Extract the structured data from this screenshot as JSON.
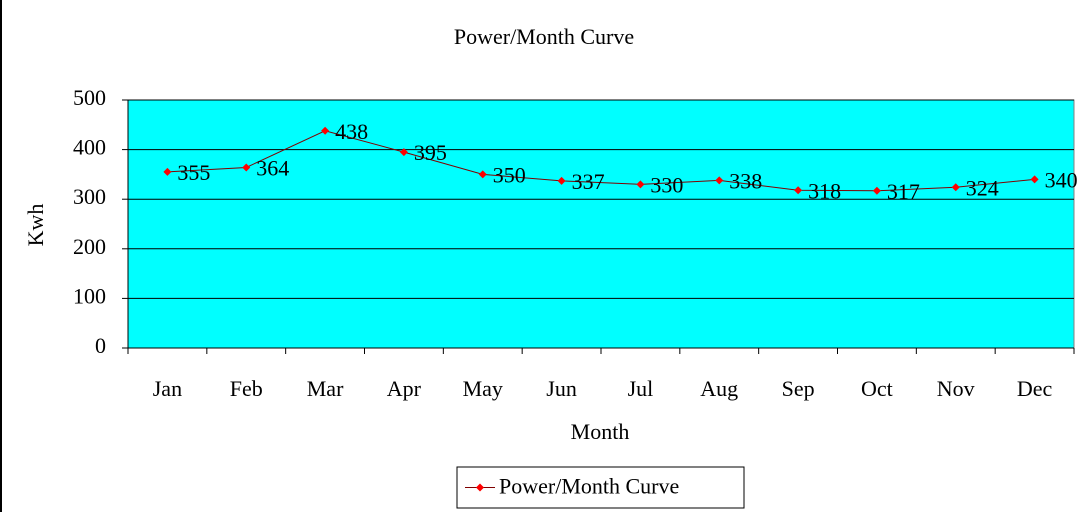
{
  "chart_data": {
    "type": "line",
    "title": "Power/Month Curve",
    "x_label": "Month",
    "y_label": "Kwh",
    "categories": [
      "Jan",
      "Feb",
      "Mar",
      "Apr",
      "May",
      "Jun",
      "Jul",
      "Aug",
      "Sep",
      "Oct",
      "Nov",
      "Dec"
    ],
    "series": [
      {
        "name": "Power/Month Curve",
        "color": "#ff0000",
        "line_color": "#800000",
        "values": [
          355,
          364,
          438,
          395,
          350,
          337,
          330,
          338,
          318,
          317,
          324,
          340
        ]
      }
    ],
    "ylim": [
      0,
      500
    ],
    "yticks": [
      0,
      100,
      200,
      300,
      400,
      500
    ],
    "grid": true,
    "legend": "bottom",
    "plot_background": "#00ffff"
  }
}
